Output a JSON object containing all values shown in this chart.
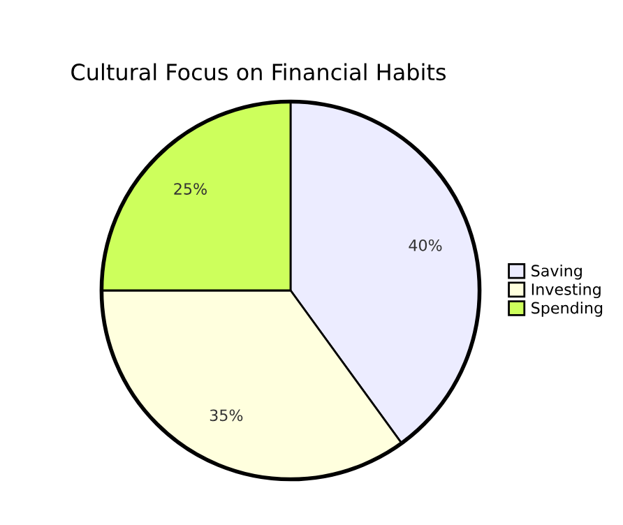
{
  "chart_data": {
    "type": "pie",
    "title": "Cultural Focus on Financial Habits",
    "categories": [
      "Saving",
      "Investing",
      "Spending"
    ],
    "values": [
      40,
      35,
      25
    ],
    "colors": [
      "#ececff",
      "#ffffde",
      "#cdff5c"
    ],
    "value_labels": [
      "40%",
      "35%",
      "25%"
    ],
    "legend": "right"
  }
}
